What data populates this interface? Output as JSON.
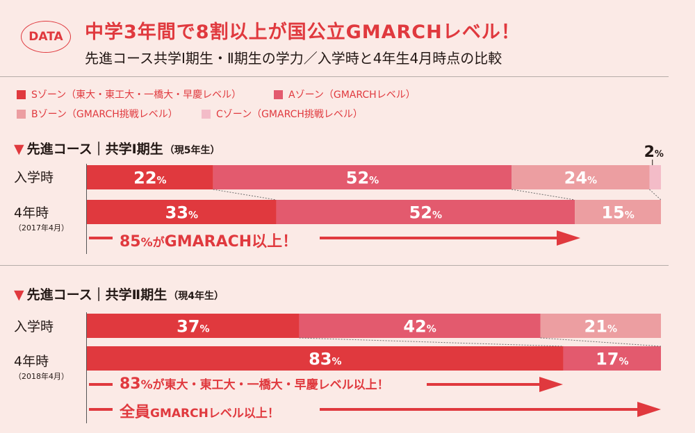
{
  "badge": "DATA",
  "title": "中学3年間で8割以上が国公立GMARCHレベル！",
  "subtitle": "先進コース共学Ⅰ期生・Ⅱ期生の学力／入学時と4年生4月時点の比較",
  "colors": {
    "S": "#e0393e",
    "A": "#e35a6e",
    "B": "#ec9ea1",
    "C": "#f3bcc8",
    "accent": "#e0393e"
  },
  "legend": [
    {
      "key": "S",
      "label": "Sゾーン（東大・東工大・一橋大・早慶レベル）"
    },
    {
      "key": "A",
      "label": "Aゾーン（GMARCHレベル）"
    },
    {
      "key": "B",
      "label": "Bゾーン（GMARCH挑戦レベル）"
    },
    {
      "key": "C",
      "label": "Cゾーン（GMARCH挑戦レベル）"
    }
  ],
  "chart_data": [
    {
      "type": "bar",
      "stacked": true,
      "orientation": "horizontal",
      "title": "先進コース｜共学Ⅰ期生",
      "title_note": "（現5年生）",
      "categories": [
        "入学時",
        "4年時"
      ],
      "category_notes": [
        "",
        "（2017年4月）"
      ],
      "unit": "%",
      "series": [
        {
          "name": "Sゾーン",
          "key": "S",
          "values": [
            22,
            33
          ]
        },
        {
          "name": "Aゾーン",
          "key": "A",
          "values": [
            52,
            52
          ]
        },
        {
          "name": "Bゾーン",
          "key": "B",
          "values": [
            24,
            15
          ]
        },
        {
          "name": "Cゾーン",
          "key": "C",
          "values": [
            2,
            0
          ]
        }
      ],
      "callouts": [
        {
          "big": "85",
          "small": "%が",
          "rest": "GMARACH以上！",
          "value": 85
        }
      ]
    },
    {
      "type": "bar",
      "stacked": true,
      "orientation": "horizontal",
      "title": "先進コース｜共学Ⅱ期生",
      "title_note": "（現4年生）",
      "categories": [
        "入学時",
        "4年時"
      ],
      "category_notes": [
        "",
        "（2018年4月）"
      ],
      "unit": "%",
      "series": [
        {
          "name": "Sゾーン",
          "key": "S",
          "values": [
            37,
            83
          ]
        },
        {
          "name": "Aゾーン",
          "key": "A",
          "values": [
            42,
            17
          ]
        },
        {
          "name": "Bゾーン",
          "key": "B",
          "values": [
            21,
            0
          ]
        },
        {
          "name": "Cゾーン",
          "key": "C",
          "values": [
            0,
            0
          ]
        }
      ],
      "callouts": [
        {
          "big": "83",
          "small": "%が",
          "rest": "東大・東工大・一橋大・早慶レベル以上！",
          "value": 83
        },
        {
          "big": "全員",
          "small": "",
          "rest": "GMARCHレベル以上！",
          "value": 100
        }
      ]
    }
  ]
}
